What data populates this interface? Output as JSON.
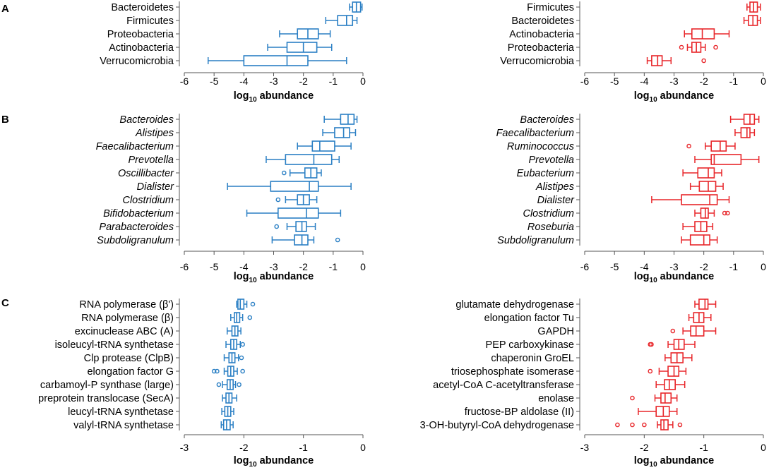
{
  "panels": [
    {
      "label": "A",
      "xlabel_main": "log",
      "xlabel_sub": "10",
      "xlabel_rest": " abundance"
    },
    {
      "label": "B"
    },
    {
      "label": "C"
    }
  ],
  "colors": {
    "left": "#2a7fc4",
    "right": "#e8262a",
    "axis": "#555555"
  },
  "chart_data": [
    {
      "type": "boxplot",
      "panel": "A",
      "side": "left",
      "orientation": "horizontal",
      "xlabel": "log10 abundance",
      "xlim": [
        -6,
        0
      ],
      "xticks": [
        -6,
        -5,
        -4,
        -3,
        -2,
        -1,
        0
      ],
      "italic_labels": false,
      "categories": [
        "Bacteroidetes",
        "Firmicutes",
        "Proteobacteria",
        "Actinobacteria",
        "Verrucomicrobia"
      ],
      "boxes": [
        {
          "wlo": -0.45,
          "q1": -0.35,
          "med": -0.22,
          "q3": -0.08,
          "whi": -0.03,
          "outliers": []
        },
        {
          "wlo": -1.25,
          "q1": -0.85,
          "med": -0.55,
          "q3": -0.35,
          "whi": -0.2,
          "outliers": []
        },
        {
          "wlo": -2.8,
          "q1": -2.2,
          "med": -1.85,
          "q3": -1.5,
          "whi": -1.1,
          "outliers": []
        },
        {
          "wlo": -3.2,
          "q1": -2.55,
          "med": -2.0,
          "q3": -1.55,
          "whi": -1.05,
          "outliers": []
        },
        {
          "wlo": -5.2,
          "q1": -4.0,
          "med": -2.55,
          "q3": -1.85,
          "whi": -0.55,
          "outliers": []
        }
      ]
    },
    {
      "type": "boxplot",
      "panel": "A",
      "side": "right",
      "orientation": "horizontal",
      "xlabel": "log10 abundance",
      "xlim": [
        -6,
        0
      ],
      "xticks": [
        -6,
        -5,
        -4,
        -3,
        -2,
        -1,
        0
      ],
      "italic_labels": false,
      "categories": [
        "Firmicutes",
        "Bacteroidetes",
        "Actinobacteria",
        "Proteobacteria",
        "Verrucomicrobia"
      ],
      "boxes": [
        {
          "wlo": -0.55,
          "q1": -0.45,
          "med": -0.33,
          "q3": -0.2,
          "whi": -0.1,
          "outliers": []
        },
        {
          "wlo": -0.65,
          "q1": -0.5,
          "med": -0.35,
          "q3": -0.2,
          "whi": -0.1,
          "outliers": []
        },
        {
          "wlo": -2.65,
          "q1": -2.4,
          "med": -2.05,
          "q3": -1.65,
          "whi": -1.15,
          "outliers": []
        },
        {
          "wlo": -2.55,
          "q1": -2.4,
          "med": -2.25,
          "q3": -2.1,
          "whi": -1.95,
          "outliers": [
            -2.75,
            -1.6
          ]
        },
        {
          "wlo": -3.9,
          "q1": -3.75,
          "med": -3.55,
          "q3": -3.4,
          "whi": -3.1,
          "outliers": [
            -2.0
          ]
        }
      ]
    },
    {
      "type": "boxplot",
      "panel": "B",
      "side": "left",
      "orientation": "horizontal",
      "xlabel": "log10 abundance",
      "xlim": [
        -6,
        0
      ],
      "xticks": [
        -6,
        -5,
        -4,
        -3,
        -2,
        -1,
        0
      ],
      "italic_labels": true,
      "categories": [
        "Bacteroides",
        "Alistipes",
        "Faecalibacterium",
        "Prevotella",
        "Oscillibacter",
        "Dialister",
        "Clostridium",
        "Bifidobacterium",
        "Parabacteroides",
        "Subdoligranulum"
      ],
      "boxes": [
        {
          "wlo": -1.3,
          "q1": -0.75,
          "med": -0.5,
          "q3": -0.3,
          "whi": -0.2,
          "outliers": []
        },
        {
          "wlo": -1.35,
          "q1": -0.95,
          "med": -0.65,
          "q3": -0.45,
          "whi": -0.25,
          "outliers": []
        },
        {
          "wlo": -2.2,
          "q1": -1.7,
          "med": -1.45,
          "q3": -0.95,
          "whi": -0.4,
          "outliers": []
        },
        {
          "wlo": -3.25,
          "q1": -2.6,
          "med": -1.65,
          "q3": -1.05,
          "whi": -0.8,
          "outliers": []
        },
        {
          "wlo": -2.45,
          "q1": -1.95,
          "med": -1.75,
          "q3": -1.55,
          "whi": -1.4,
          "outliers": [
            -2.65
          ]
        },
        {
          "wlo": -4.55,
          "q1": -3.1,
          "med": -1.8,
          "q3": -1.5,
          "whi": -0.4,
          "outliers": []
        },
        {
          "wlo": -2.6,
          "q1": -2.2,
          "med": -2.0,
          "q3": -1.8,
          "whi": -1.55,
          "outliers": [
            -2.85
          ]
        },
        {
          "wlo": -3.9,
          "q1": -2.85,
          "med": -1.9,
          "q3": -1.5,
          "whi": -0.75,
          "outliers": []
        },
        {
          "wlo": -2.55,
          "q1": -2.25,
          "med": -2.05,
          "q3": -1.9,
          "whi": -1.6,
          "outliers": [
            -2.9
          ]
        },
        {
          "wlo": -3.05,
          "q1": -2.3,
          "med": -2.05,
          "q3": -1.85,
          "whi": -1.65,
          "outliers": [
            -0.85
          ]
        }
      ]
    },
    {
      "type": "boxplot",
      "panel": "B",
      "side": "right",
      "orientation": "horizontal",
      "xlabel": "log10 abundance",
      "xlim": [
        -6,
        0
      ],
      "xticks": [
        -6,
        -5,
        -4,
        -3,
        -2,
        -1,
        0
      ],
      "italic_labels": true,
      "categories": [
        "Bacteroides",
        "Faecalibacterium",
        "Ruminococcus",
        "Prevotella",
        "Eubacterium",
        "Alistipes",
        "Dialister",
        "Clostridium",
        "Roseburia",
        "Subdoligranulum"
      ],
      "boxes": [
        {
          "wlo": -1.1,
          "q1": -0.65,
          "med": -0.45,
          "q3": -0.3,
          "whi": -0.15,
          "outliers": []
        },
        {
          "wlo": -0.95,
          "q1": -0.75,
          "med": -0.55,
          "q3": -0.45,
          "whi": -0.3,
          "outliers": []
        },
        {
          "wlo": -1.95,
          "q1": -1.75,
          "med": -1.45,
          "q3": -1.25,
          "whi": -0.95,
          "outliers": [
            -2.5
          ]
        },
        {
          "wlo": -2.3,
          "q1": -1.75,
          "med": -1.65,
          "q3": -0.75,
          "whi": -0.15,
          "outliers": []
        },
        {
          "wlo": -2.7,
          "q1": -2.2,
          "med": -1.85,
          "q3": -1.65,
          "whi": -1.4,
          "outliers": []
        },
        {
          "wlo": -2.45,
          "q1": -2.15,
          "med": -1.85,
          "q3": -1.6,
          "whi": -1.35,
          "outliers": []
        },
        {
          "wlo": -3.75,
          "q1": -2.75,
          "med": -1.8,
          "q3": -1.55,
          "whi": -1.15,
          "outliers": []
        },
        {
          "wlo": -2.3,
          "q1": -2.1,
          "med": -1.95,
          "q3": -1.85,
          "whi": -1.65,
          "outliers": [
            -1.3,
            -1.2
          ]
        },
        {
          "wlo": -2.7,
          "q1": -2.3,
          "med": -2.1,
          "q3": -1.9,
          "whi": -1.7,
          "outliers": []
        },
        {
          "wlo": -2.75,
          "q1": -2.45,
          "med": -2.0,
          "q3": -1.8,
          "whi": -1.55,
          "outliers": []
        }
      ]
    },
    {
      "type": "boxplot",
      "panel": "C",
      "side": "left",
      "orientation": "horizontal",
      "xlabel": "log10 abundance",
      "xlim": [
        -3,
        0
      ],
      "xticks": [
        -3,
        -2,
        -1,
        0
      ],
      "italic_labels": false,
      "categories": [
        "RNA polymerase (β')",
        "RNA polymerase (β)",
        "excinuclease ABC (A)",
        "isoleucyl-tRNA synthetase",
        "Clp protease (ClpB)",
        "elongation factor G",
        "carbamoyl-P synthase (large)",
        "preprotein translocase (SecA)",
        "leucyl-tRNA synthetase",
        "valyl-tRNA synthetase"
      ],
      "boxes": [
        {
          "wlo": -2.12,
          "q1": -2.1,
          "med": -2.06,
          "q3": -2.0,
          "whi": -1.95,
          "outliers": [
            -1.85
          ]
        },
        {
          "wlo": -2.22,
          "q1": -2.16,
          "med": -2.12,
          "q3": -2.07,
          "whi": -2.02,
          "outliers": [
            -1.9
          ]
        },
        {
          "wlo": -2.28,
          "q1": -2.2,
          "med": -2.15,
          "q3": -2.1,
          "whi": -2.05,
          "outliers": []
        },
        {
          "wlo": -2.3,
          "q1": -2.22,
          "med": -2.17,
          "q3": -2.12,
          "whi": -2.06,
          "outliers": [
            -2.02
          ]
        },
        {
          "wlo": -2.33,
          "q1": -2.25,
          "med": -2.2,
          "q3": -2.15,
          "whi": -2.09,
          "outliers": [
            -2.04
          ]
        },
        {
          "wlo": -2.33,
          "q1": -2.27,
          "med": -2.22,
          "q3": -2.17,
          "whi": -2.11,
          "outliers": [
            -2.5,
            -2.45,
            -2.02
          ]
        },
        {
          "wlo": -2.36,
          "q1": -2.28,
          "med": -2.23,
          "q3": -2.18,
          "whi": -2.14,
          "outliers": [
            -2.42,
            -2.08
          ]
        },
        {
          "wlo": -2.36,
          "q1": -2.3,
          "med": -2.25,
          "q3": -2.2,
          "whi": -2.12,
          "outliers": []
        },
        {
          "wlo": -2.37,
          "q1": -2.32,
          "med": -2.27,
          "q3": -2.22,
          "whi": -2.17,
          "outliers": []
        },
        {
          "wlo": -2.38,
          "q1": -2.34,
          "med": -2.29,
          "q3": -2.23,
          "whi": -2.18,
          "outliers": []
        }
      ]
    },
    {
      "type": "boxplot",
      "panel": "C",
      "side": "right",
      "orientation": "horizontal",
      "xlabel": "log10 abundance",
      "xlim": [
        -3,
        0
      ],
      "xticks": [
        -3,
        -2,
        -1,
        0
      ],
      "italic_labels": false,
      "categories": [
        "glutamate dehydrogenase",
        "elongation factor Tu",
        "GAPDH",
        "PEP carboxykinase",
        "chaperonin GroEL",
        "triosephosphate isomerase",
        "acetyl-CoA C-acetyltransferase",
        "enolase",
        "fructose-BP aldolase (II)",
        "3-OH-butyryl-CoA dehydrogenase"
      ],
      "boxes": [
        {
          "wlo": -1.15,
          "q1": -1.08,
          "med": -0.98,
          "q3": -0.93,
          "whi": -0.8,
          "outliers": []
        },
        {
          "wlo": -1.25,
          "q1": -1.17,
          "med": -1.08,
          "q3": -1.0,
          "whi": -0.88,
          "outliers": []
        },
        {
          "wlo": -1.35,
          "q1": -1.22,
          "med": -1.13,
          "q3": -1.0,
          "whi": -0.8,
          "outliers": [
            -1.52
          ]
        },
        {
          "wlo": -1.6,
          "q1": -1.5,
          "med": -1.42,
          "q3": -1.33,
          "whi": -1.15,
          "outliers": [
            -1.9,
            -1.88
          ]
        },
        {
          "wlo": -1.65,
          "q1": -1.55,
          "med": -1.45,
          "q3": -1.35,
          "whi": -1.2,
          "outliers": []
        },
        {
          "wlo": -1.75,
          "q1": -1.6,
          "med": -1.5,
          "q3": -1.42,
          "whi": -1.3,
          "outliers": [
            -1.9
          ]
        },
        {
          "wlo": -1.8,
          "q1": -1.66,
          "med": -1.58,
          "q3": -1.48,
          "whi": -1.32,
          "outliers": []
        },
        {
          "wlo": -1.82,
          "q1": -1.72,
          "med": -1.65,
          "q3": -1.55,
          "whi": -1.45,
          "outliers": [
            -2.2
          ]
        },
        {
          "wlo": -2.1,
          "q1": -1.8,
          "med": -1.68,
          "q3": -1.58,
          "whi": -1.45,
          "outliers": []
        },
        {
          "wlo": -1.78,
          "q1": -1.72,
          "med": -1.67,
          "q3": -1.6,
          "whi": -1.52,
          "outliers": [
            -2.45,
            -2.2,
            -2.0,
            -1.4
          ]
        }
      ]
    }
  ]
}
